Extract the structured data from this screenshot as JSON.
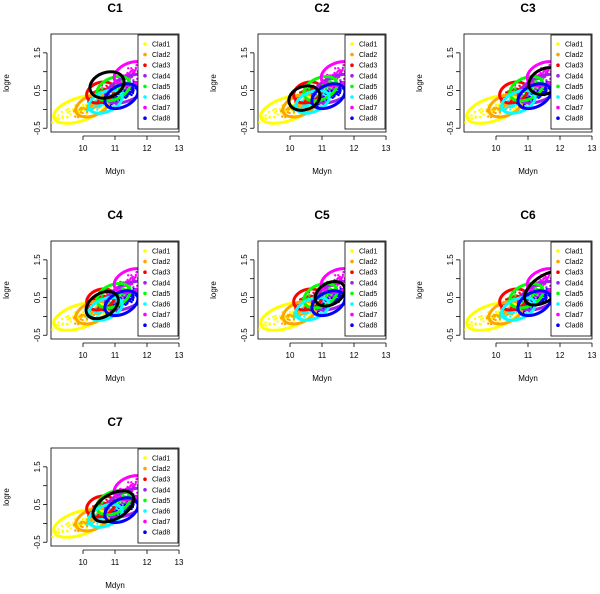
{
  "chart_data": {
    "type": "scatter",
    "xlabel": "Mdyn",
    "ylabel": "logre",
    "xlim": [
      9,
      13
    ],
    "ylim": [
      -0.6,
      2.0
    ],
    "xticks": [
      "10",
      "11",
      "12",
      "13"
    ],
    "yticks": [
      "-0.5",
      "0.5",
      "1.5"
    ],
    "ytick_values": [
      -0.5,
      0.5,
      1.5
    ],
    "xtick_values": [
      10,
      11,
      12,
      13
    ],
    "legend": {
      "position": "right",
      "entries": [
        {
          "label": "Clad1",
          "color": "#ffff00"
        },
        {
          "label": "Clad2",
          "color": "#ffa500"
        },
        {
          "label": "Clad3",
          "color": "#ff0000"
        },
        {
          "label": "Clad4",
          "color": "#a020f0"
        },
        {
          "label": "Clad5",
          "color": "#00ff00"
        },
        {
          "label": "Clad6",
          "color": "#00ffff"
        },
        {
          "label": "Clad7",
          "color": "#ff00ff"
        },
        {
          "label": "Clad8",
          "color": "#0000ff"
        }
      ]
    },
    "clusters": [
      {
        "name": "Clad1",
        "color": "#ffff00",
        "cx": 9.9,
        "cy": 0.0,
        "rx": 0.85,
        "ry": 0.14,
        "angle": 18
      },
      {
        "name": "Clad2",
        "color": "#ffa500",
        "cx": 10.3,
        "cy": 0.1,
        "rx": 0.55,
        "ry": 0.12,
        "angle": 22
      },
      {
        "name": "Clad3",
        "color": "#ff0000",
        "cx": 10.55,
        "cy": 0.45,
        "rx": 0.45,
        "ry": 0.12,
        "angle": 20
      },
      {
        "name": "Clad4",
        "color": "#a020f0",
        "cx": 11.4,
        "cy": 0.55,
        "rx": 0.75,
        "ry": 0.14,
        "angle": 24
      },
      {
        "name": "Clad5",
        "color": "#00ff00",
        "cx": 10.95,
        "cy": 0.55,
        "rx": 0.55,
        "ry": 0.13,
        "angle": 24
      },
      {
        "name": "Clad6",
        "color": "#00ffff",
        "cx": 10.7,
        "cy": 0.2,
        "rx": 0.55,
        "ry": 0.12,
        "angle": 22
      },
      {
        "name": "Clad7",
        "color": "#ff00ff",
        "cx": 11.5,
        "cy": 0.95,
        "rx": 0.55,
        "ry": 0.13,
        "angle": 22
      },
      {
        "name": "Clad8",
        "color": "#0000ff",
        "cx": 11.2,
        "cy": 0.35,
        "rx": 0.55,
        "ry": 0.13,
        "angle": 26
      }
    ],
    "panels": [
      {
        "title": "C1",
        "highlight": {
          "cx": 10.75,
          "cy": 0.65,
          "rx": 0.55,
          "ry": 0.15,
          "angle": 20
        }
      },
      {
        "title": "C2",
        "highlight": {
          "cx": 10.45,
          "cy": 0.3,
          "rx": 0.5,
          "ry": 0.14,
          "angle": 20
        }
      },
      {
        "title": "C3",
        "highlight": {
          "cx": 11.55,
          "cy": 0.75,
          "rx": 0.55,
          "ry": 0.15,
          "angle": 24
        }
      },
      {
        "title": "C4",
        "highlight": {
          "cx": 10.6,
          "cy": 0.3,
          "rx": 0.55,
          "ry": 0.14,
          "angle": 32
        }
      },
      {
        "title": "C5",
        "highlight": {
          "cx": 11.25,
          "cy": 0.6,
          "rx": 0.5,
          "ry": 0.13,
          "angle": 30
        }
      },
      {
        "title": "C6",
        "highlight": {
          "cx": 11.55,
          "cy": 0.75,
          "rx": 0.75,
          "ry": 0.15,
          "angle": 34
        }
      },
      {
        "title": "C7",
        "highlight": {
          "cx": 10.95,
          "cy": 0.45,
          "rx": 0.7,
          "ry": 0.15,
          "angle": 30
        }
      }
    ]
  }
}
